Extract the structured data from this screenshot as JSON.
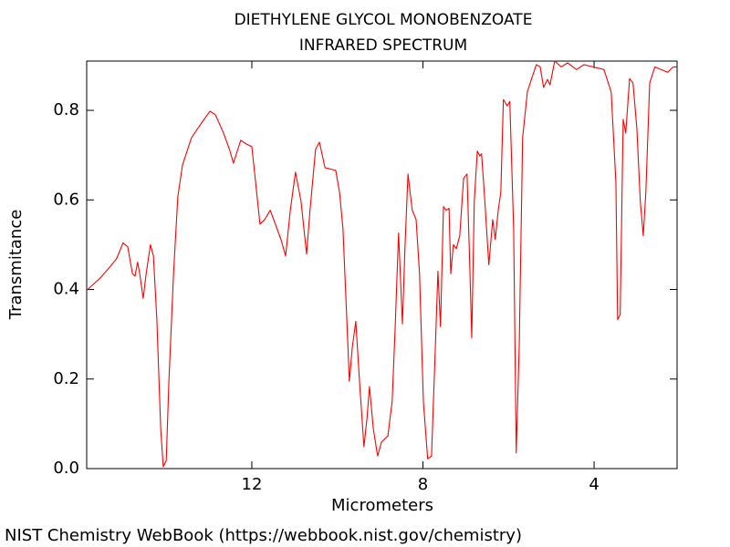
{
  "chart_data": {
    "type": "line",
    "title": "DIETHYLENE GLYCOL MONOBENZOATE",
    "subtitle": "INFRARED SPECTRUM",
    "x_label": "Micrometers",
    "y_label": "Transmitance",
    "source": "NIST Chemistry WebBook (https://webbook.nist.gov/chemistry)",
    "xlim": [
      15.86,
      2.06
    ],
    "ylim": [
      0,
      0.91
    ],
    "xticks": [
      12,
      8,
      4
    ],
    "yticks": [
      {
        "value": 0,
        "label": "0.0"
      },
      0.2,
      0.4,
      0.6,
      0.8
    ],
    "x": [
      15.86,
      15.54,
      15.33,
      15.16,
      15.01,
      14.9,
      14.79,
      14.73,
      14.67,
      14.62,
      14.54,
      14.47,
      14.37,
      14.3,
      14.22,
      14.13,
      14.07,
      14.0,
      13.94,
      13.83,
      13.73,
      13.62,
      13.41,
      13.19,
      12.98,
      12.85,
      12.66,
      12.51,
      12.43,
      12.34,
      12.26,
      12.13,
      12.0,
      11.91,
      11.81,
      11.7,
      11.57,
      11.45,
      11.32,
      11.21,
      11.1,
      10.98,
      10.85,
      10.72,
      10.64,
      10.51,
      10.42,
      10.29,
      10.04,
      9.95,
      9.87,
      9.78,
      9.72,
      9.65,
      9.57,
      9.48,
      9.38,
      9.31,
      9.25,
      9.16,
      9.06,
      8.97,
      8.82,
      8.72,
      8.65,
      8.57,
      8.48,
      8.42,
      8.35,
      8.25,
      8.16,
      8.08,
      7.99,
      7.89,
      7.8,
      7.71,
      7.65,
      7.59,
      7.52,
      7.46,
      7.39,
      7.35,
      7.29,
      7.22,
      7.14,
      7.05,
      6.97,
      6.9,
      6.86,
      6.8,
      6.73,
      6.67,
      6.63,
      6.56,
      6.46,
      6.37,
      6.31,
      6.24,
      6.18,
      6.12,
      6.03,
      5.97,
      5.88,
      5.82,
      5.75,
      5.67,
      5.56,
      5.48,
      5.35,
      5.26,
      5.18,
      5.09,
      5.03,
      4.92,
      4.77,
      4.62,
      4.41,
      4.24,
      4.02,
      3.77,
      3.6,
      3.49,
      3.45,
      3.39,
      3.32,
      3.26,
      3.17,
      3.09,
      3.0,
      2.92,
      2.85,
      2.79,
      2.7,
      2.58,
      2.43,
      2.28,
      2.15,
      2.06
    ],
    "series": [
      {
        "color": "#ff0000",
        "values": [
          0.398,
          0.426,
          0.449,
          0.469,
          0.504,
          0.495,
          0.435,
          0.43,
          0.461,
          0.435,
          0.38,
          0.435,
          0.5,
          0.475,
          0.333,
          0.089,
          0.004,
          0.018,
          0.191,
          0.435,
          0.607,
          0.678,
          0.739,
          0.77,
          0.798,
          0.79,
          0.749,
          0.709,
          0.682,
          0.709,
          0.733,
          0.725,
          0.719,
          0.638,
          0.546,
          0.556,
          0.577,
          0.546,
          0.512,
          0.475,
          0.577,
          0.662,
          0.597,
          0.479,
          0.577,
          0.713,
          0.729,
          0.672,
          0.666,
          0.617,
          0.536,
          0.333,
          0.195,
          0.272,
          0.329,
          0.191,
          0.049,
          0.11,
          0.183,
          0.089,
          0.028,
          0.059,
          0.073,
          0.15,
          0.313,
          0.526,
          0.323,
          0.495,
          0.658,
          0.577,
          0.556,
          0.435,
          0.15,
          0.022,
          0.028,
          0.272,
          0.441,
          0.317,
          0.585,
          0.577,
          0.581,
          0.435,
          0.5,
          0.491,
          0.52,
          0.648,
          0.658,
          0.435,
          0.292,
          0.597,
          0.709,
          0.698,
          0.703,
          0.607,
          0.455,
          0.556,
          0.512,
          0.577,
          0.617,
          0.824,
          0.81,
          0.82,
          0.536,
          0.035,
          0.272,
          0.739,
          0.841,
          0.865,
          0.902,
          0.897,
          0.851,
          0.869,
          0.857,
          0.91,
          0.897,
          0.906,
          0.891,
          0.902,
          0.897,
          0.891,
          0.841,
          0.638,
          0.333,
          0.343,
          0.78,
          0.749,
          0.871,
          0.861,
          0.759,
          0.597,
          0.52,
          0.617,
          0.861,
          0.897,
          0.891,
          0.885,
          0.897,
          0.897
        ]
      }
    ]
  }
}
